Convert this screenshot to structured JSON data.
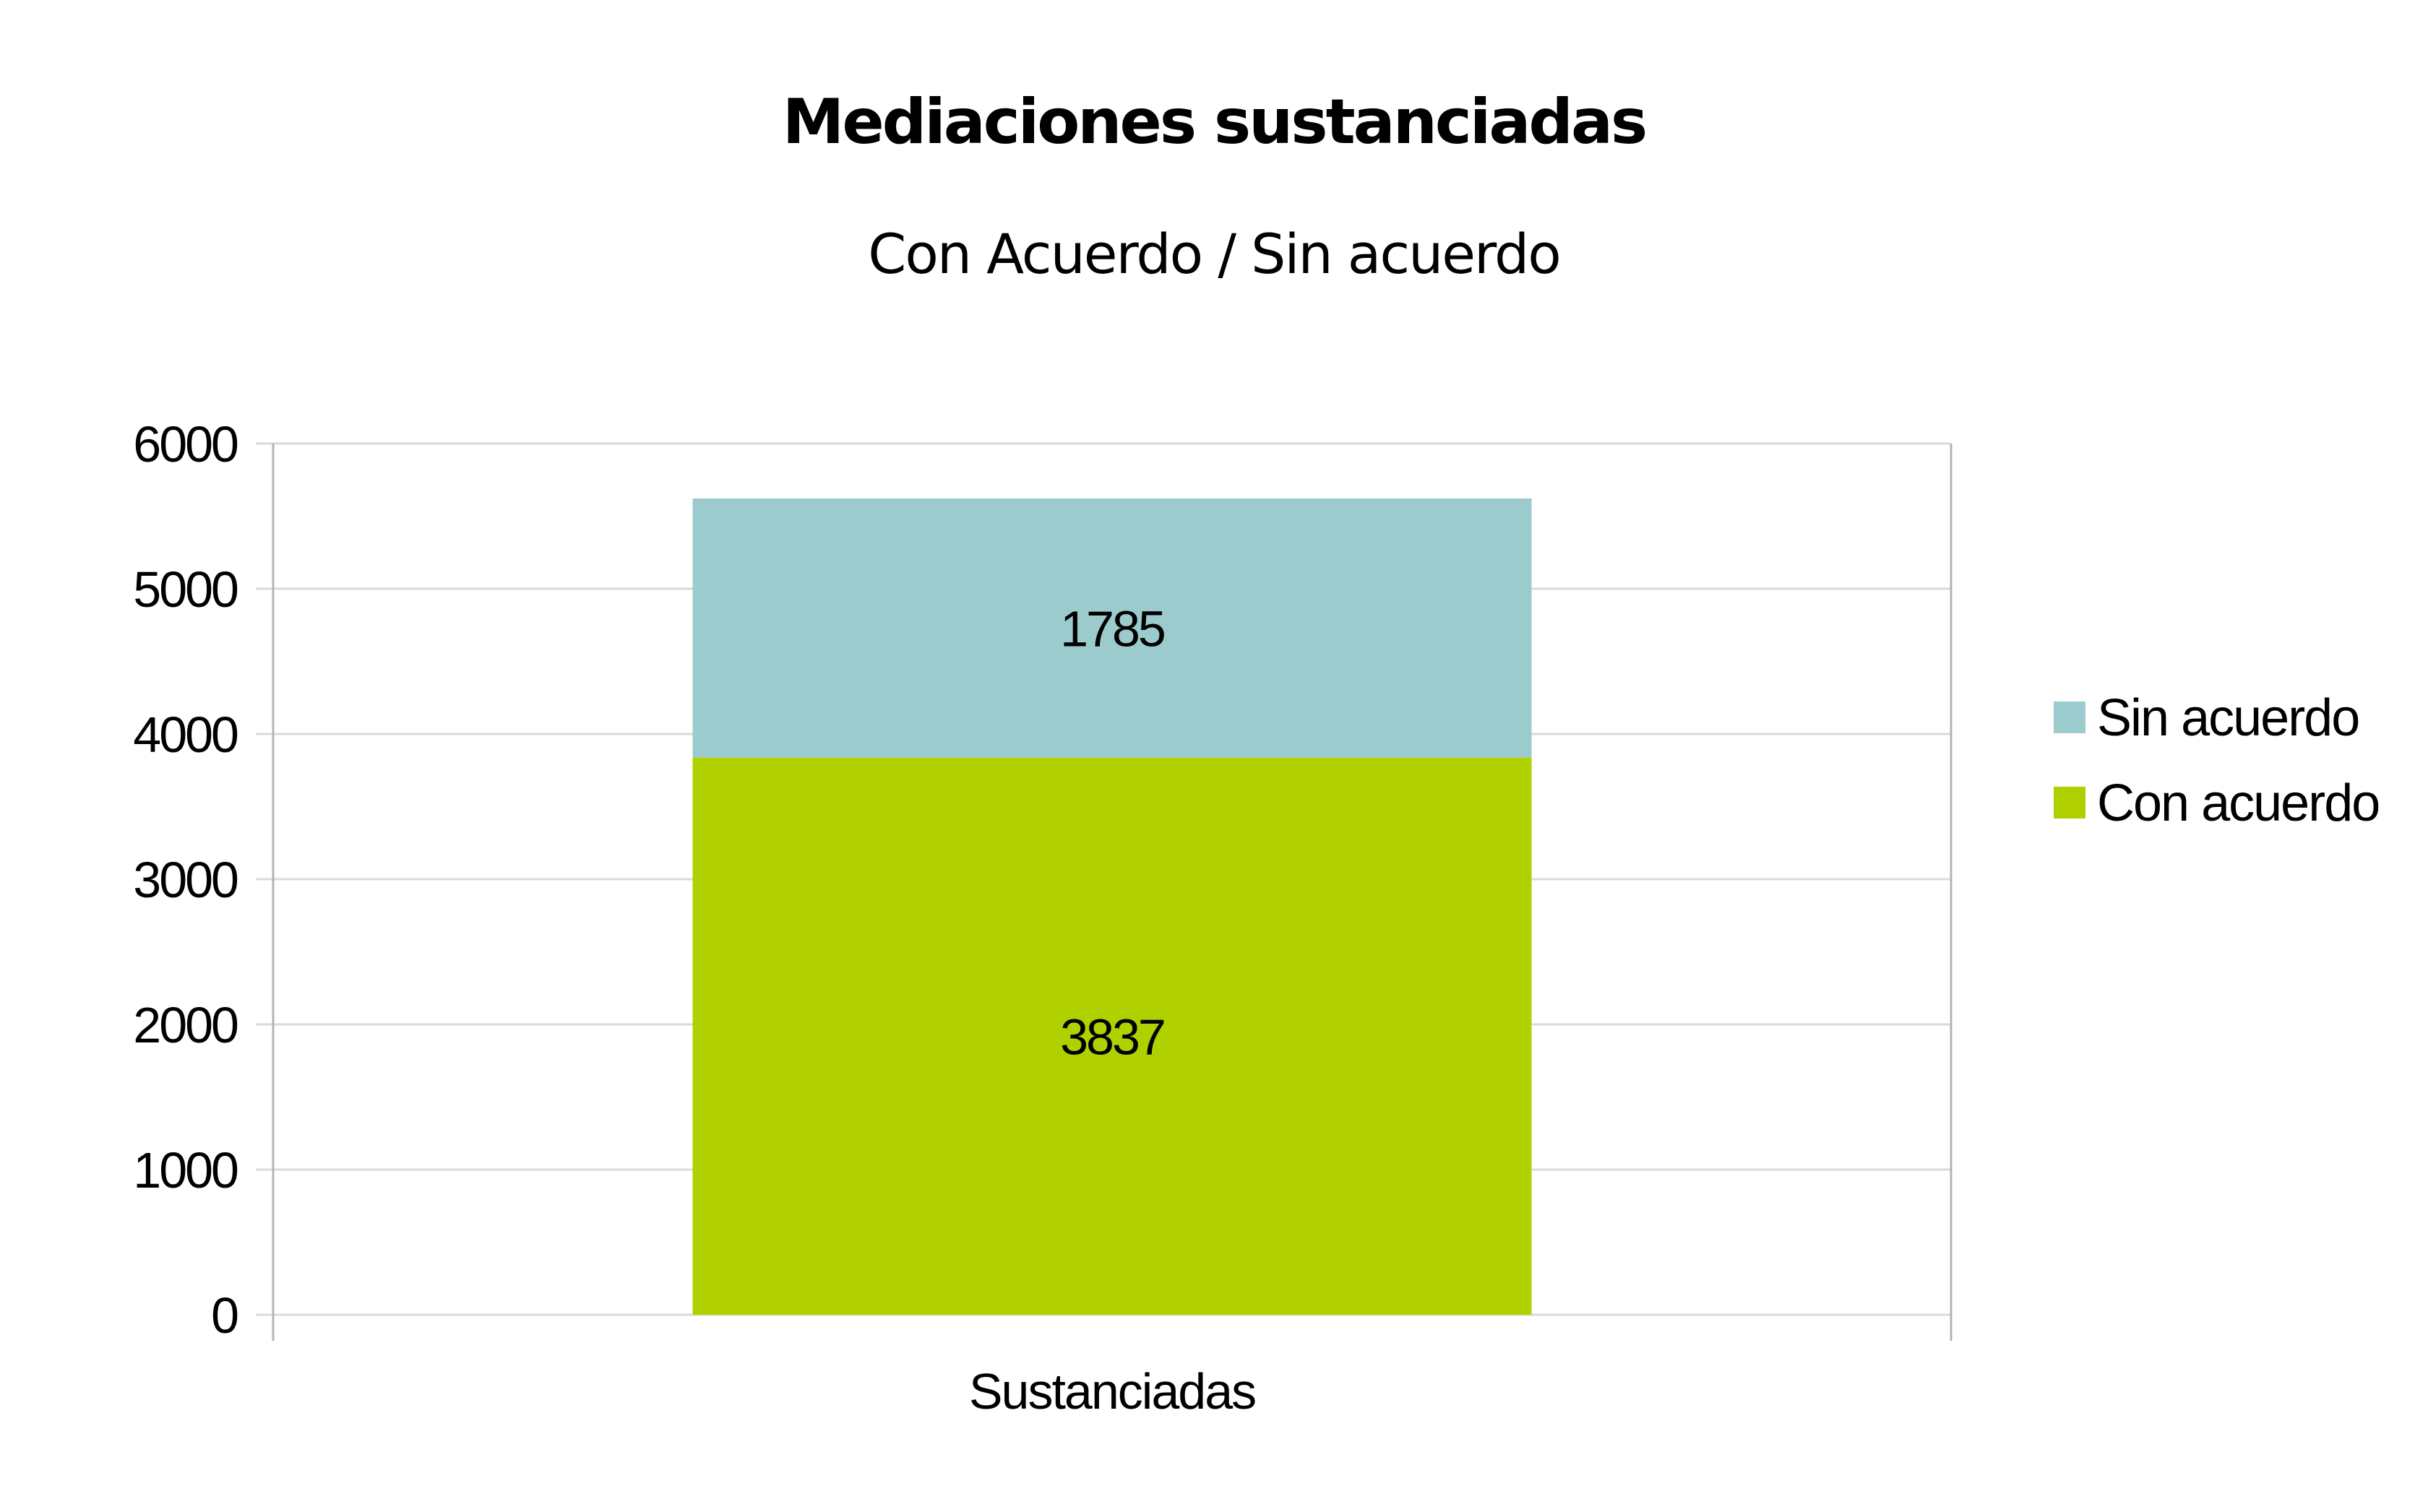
{
  "chart_data": {
    "type": "bar",
    "stacked": true,
    "title": "Mediaciones sustanciadas",
    "subtitle": "Con Acuerdo / Sin acuerdo",
    "categories": [
      "Sustanciadas"
    ],
    "series": [
      {
        "name": "Con acuerdo",
        "values": [
          3837
        ],
        "color": "#b0d000"
      },
      {
        "name": "Sin acuerdo",
        "values": [
          1785
        ],
        "color": "#9bcbcc"
      }
    ],
    "legend_order": [
      "Sin acuerdo",
      "Con acuerdo"
    ],
    "ylim": [
      0,
      6000
    ],
    "yticks": [
      "0",
      "1000",
      "2000",
      "3000",
      "4000",
      "5000",
      "6000"
    ],
    "xlabel": "",
    "ylabel": "",
    "grid": true,
    "legend_position": "right",
    "colors": {
      "grid": "#d9d9d9",
      "axis": "#b3b3b3"
    }
  }
}
